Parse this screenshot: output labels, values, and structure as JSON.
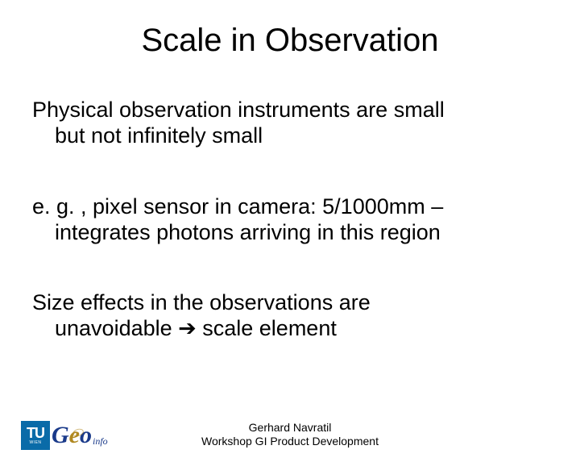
{
  "slide": {
    "title": "Scale in Observation",
    "para1_line1": "Physical observation instruments are small",
    "para1_line2": "but not infinitely small",
    "para2_line1": "e. g. , pixel sensor in camera: 5/1000mm –",
    "para2_line2": "integrates photons arriving in this region",
    "para3_line1": "Size effects in the observations are",
    "para3_line2": "unavoidable ➔ scale element",
    "footer_line1": "Gerhard Navratil",
    "footer_line2": "Workshop GI Product Development"
  },
  "logo": {
    "tu_text": "TU",
    "tu_sub": "WIEN",
    "geo_g": "G",
    "geo_e": "e",
    "geo_o": "o",
    "geo_info": "info"
  },
  "style": {
    "background_color": "#ffffff",
    "text_color": "#000000",
    "title_fontsize": 40,
    "body_fontsize": 27,
    "footer_fontsize": 14,
    "tu_logo_bg": "#0a6ba8",
    "geo_blue": "#1a3a8a",
    "geo_gold": "#b08820",
    "font_family": "Arial, Helvetica, sans-serif"
  }
}
